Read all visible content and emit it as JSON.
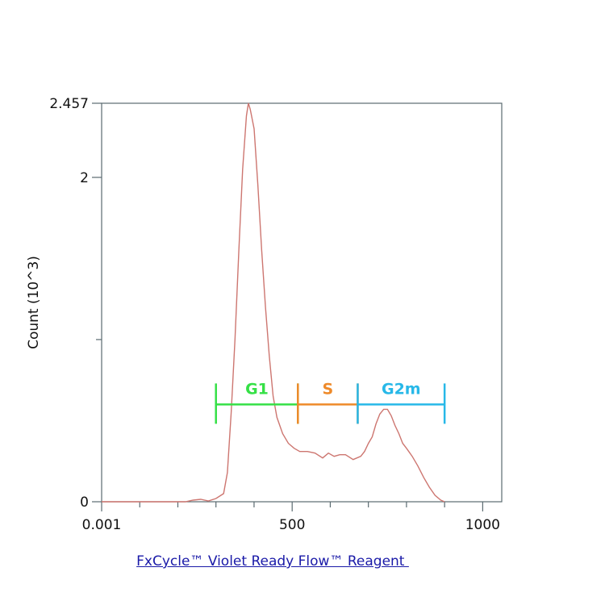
{
  "chart_data": {
    "type": "line",
    "title": "",
    "xlabel": "FxCycle™ Violet Ready Flow™ Reagent ",
    "ylabel": "Count (10^3)",
    "xlim": [
      0,
      1050
    ],
    "ylim": [
      0,
      2.457
    ],
    "x_ticks": [
      {
        "value": 0,
        "label": "0.001"
      },
      {
        "value": 500,
        "label": "500"
      },
      {
        "value": 1000,
        "label": "1000"
      }
    ],
    "x_minor_ticks": [
      100,
      200,
      300,
      400,
      600,
      700,
      800,
      900
    ],
    "y_ticks": [
      {
        "value": 0,
        "label": "0"
      },
      {
        "value": 2,
        "label": "2"
      },
      {
        "value": 2.457,
        "label": "2.457"
      }
    ],
    "y_minor_ticks": [
      1
    ],
    "grid": false,
    "series": [
      {
        "color": "#cd7670",
        "x": [
          0,
          100,
          220,
          240,
          260,
          280,
          300,
          320,
          330,
          340,
          350,
          360,
          370,
          380,
          385,
          390,
          400,
          410,
          420,
          430,
          440,
          450,
          460,
          475,
          490,
          505,
          520,
          540,
          560,
          580,
          595,
          610,
          625,
          640,
          660,
          680,
          690,
          700,
          710,
          720,
          730,
          740,
          750,
          760,
          770,
          780,
          790,
          800,
          815,
          830,
          845,
          860,
          875,
          890,
          900
        ],
        "y": [
          0,
          0,
          0,
          0.01,
          0.015,
          0.005,
          0.02,
          0.05,
          0.18,
          0.55,
          1.0,
          1.55,
          2.05,
          2.38,
          2.457,
          2.42,
          2.3,
          1.95,
          1.55,
          1.2,
          0.9,
          0.65,
          0.52,
          0.42,
          0.36,
          0.33,
          0.31,
          0.31,
          0.3,
          0.27,
          0.3,
          0.28,
          0.29,
          0.29,
          0.26,
          0.28,
          0.31,
          0.36,
          0.4,
          0.48,
          0.54,
          0.57,
          0.57,
          0.53,
          0.47,
          0.42,
          0.36,
          0.33,
          0.28,
          0.22,
          0.15,
          0.09,
          0.04,
          0.01,
          0
        ]
      }
    ],
    "gates": [
      {
        "name": "G1",
        "x_start": 300,
        "x_end": 515,
        "level": 0.6,
        "color": "#35e046"
      },
      {
        "name": "S",
        "x_start": 515,
        "x_end": 672,
        "level": 0.6,
        "color": "#ee8a2a"
      },
      {
        "name": "G2m",
        "x_start": 672,
        "x_end": 900,
        "level": 0.6,
        "color": "#27b8e8"
      }
    ]
  }
}
